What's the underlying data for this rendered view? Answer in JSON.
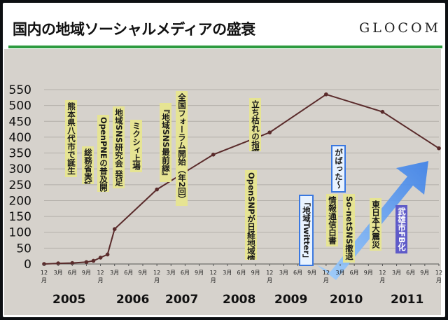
{
  "title": "国内の地域ソーシャルメディアの盛衰",
  "brand": "GLOCOM",
  "colors": {
    "rule": "#2d9b3f",
    "panel": "#d6d2cc",
    "line": "#5a2b2b",
    "note_yellow": "#e6e493",
    "arrow": "#3a7fe8"
  },
  "chart_data": {
    "type": "line",
    "title": "",
    "xlabel": "",
    "ylabel": "",
    "ylim": [
      0,
      550
    ],
    "yticks": [
      0,
      50,
      100,
      150,
      200,
      250,
      300,
      350,
      400,
      450,
      500,
      550
    ],
    "grid": true,
    "x_tick_labels": [
      "12月",
      "3月",
      "6月",
      "9月",
      "12月",
      "3月",
      "6月",
      "9月",
      "12月",
      "3月",
      "6月",
      "9月",
      "12月",
      "3月",
      "6月",
      "9月",
      "12月",
      "3月",
      "6月",
      "9月",
      "12月",
      "3月",
      "6月",
      "9月",
      "12月",
      "3月",
      "6月",
      "9月",
      "12月"
    ],
    "year_labels": [
      "2005",
      "2006",
      "2007",
      "2008",
      "2009",
      "2010",
      "2011"
    ],
    "series": [
      {
        "points": [
          {
            "x": 0,
            "y": 0
          },
          {
            "x": 1,
            "y": 2
          },
          {
            "x": 2,
            "y": 3
          },
          {
            "x": 3,
            "y": 6
          },
          {
            "x": 3.5,
            "y": 10
          },
          {
            "x": 4,
            "y": 20
          },
          {
            "x": 4.5,
            "y": 30
          },
          {
            "x": 5,
            "y": 110
          },
          {
            "x": 8,
            "y": 235
          },
          {
            "x": 12,
            "y": 345
          },
          {
            "x": 16,
            "y": 415
          },
          {
            "x": 20,
            "y": 535
          },
          {
            "x": 24,
            "y": 480
          },
          {
            "x": 28,
            "y": 365
          }
        ]
      }
    ],
    "annotations": [
      "熊本県八代市で誕生",
      "総務省実証実験",
      "OpenPNEの普及開始",
      "地域SNS研究会 発足",
      "ミクシィ上場",
      "『地域SNS最前線』",
      "全国フォーラム開始（年2回）",
      "OpenSNPが日経地域情報化大賞",
      "立ち枯れの指摘",
      "「地域Twitter」",
      "がばった～",
      "情報通信白書",
      "So-netSNS撤退",
      "東日本大震災",
      "武雄市FB化"
    ]
  }
}
